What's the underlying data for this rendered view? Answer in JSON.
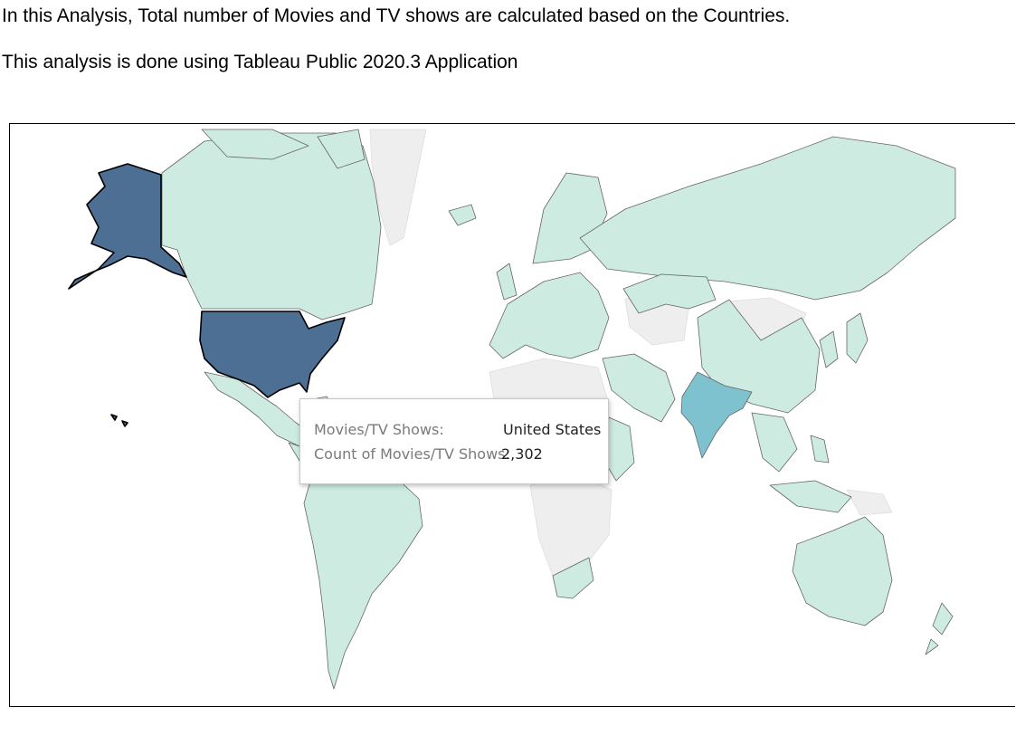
{
  "intro": {
    "line1": "In this Analysis, Total number of Movies and TV shows are calculated based on the Countries.",
    "line2": "This analysis is done using Tableau Public 2020.3 Application"
  },
  "map": {
    "colors": {
      "low": "#cdebe1",
      "medium": "#7fc2cf",
      "high": "#4e6f94",
      "no_data": "#eeeeee",
      "border": "#666666"
    }
  },
  "tooltip": {
    "row1_label": "Movies/TV Shows:",
    "row1_value": "United States",
    "row2_label": "Count of Movies/TV Shows:",
    "row2_value": "2,302"
  }
}
